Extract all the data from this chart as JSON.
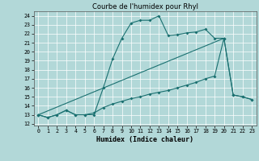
{
  "title": "Courbe de l'humidex pour Rhyl",
  "xlabel": "Humidex (Indice chaleur)",
  "xlim": [
    -0.5,
    23.5
  ],
  "ylim": [
    11.8,
    24.5
  ],
  "yticks": [
    12,
    13,
    14,
    15,
    16,
    17,
    18,
    19,
    20,
    21,
    22,
    23,
    24
  ],
  "xticks": [
    0,
    1,
    2,
    3,
    4,
    5,
    6,
    7,
    8,
    9,
    10,
    11,
    12,
    13,
    14,
    15,
    16,
    17,
    18,
    19,
    20,
    21,
    22,
    23
  ],
  "bg_color": "#b2d8d8",
  "line_color": "#1a7070",
  "grid_color": "#ffffff",
  "line1_x": [
    0,
    1,
    2,
    3,
    4,
    5,
    6,
    7,
    8,
    9,
    10,
    11,
    12,
    13,
    14,
    15,
    16,
    17,
    18,
    19,
    20
  ],
  "line1_y": [
    13,
    12.7,
    13.0,
    13.5,
    13.0,
    13.0,
    13.0,
    16.0,
    19.2,
    21.5,
    23.2,
    23.5,
    23.5,
    24.0,
    21.8,
    21.9,
    22.1,
    22.2,
    22.5,
    21.5,
    21.5
  ],
  "line2_x": [
    0,
    1,
    2,
    3,
    4,
    5,
    6,
    7,
    8,
    9,
    10,
    11,
    12,
    13,
    14,
    15,
    16,
    17,
    18,
    19,
    20,
    21,
    22,
    23
  ],
  "line2_y": [
    13,
    12.7,
    13.0,
    13.5,
    13.0,
    13.0,
    13.2,
    13.8,
    14.2,
    14.5,
    14.8,
    15.0,
    15.3,
    15.5,
    15.7,
    16.0,
    16.3,
    16.6,
    17.0,
    17.3,
    21.5,
    15.2,
    15.0,
    14.7
  ],
  "line3_x": [
    0,
    20,
    21,
    22,
    23
  ],
  "line3_y": [
    13,
    21.5,
    15.2,
    15.0,
    14.7
  ],
  "title_fontsize": 6.0,
  "tick_fontsize": 4.8,
  "label_fontsize": 6.0,
  "linewidth": 0.8,
  "markersize": 2.0
}
